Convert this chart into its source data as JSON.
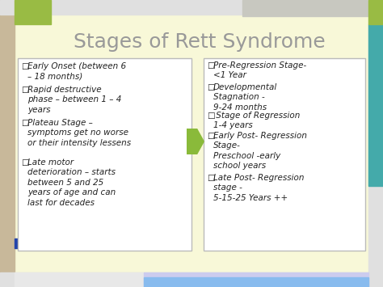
{
  "title": "Stages of Rett Syndrome",
  "title_fontsize": 18,
  "title_color": "#999999",
  "bg_color": "#f8f8d8",
  "outer_bg": "#e0e0e0",
  "left_box_items": [
    "Early Onset (between 6\n– 18 months)",
    "Rapid destructive\nphase – between 1 – 4\nyears",
    "Plateau Stage –\nsymptoms get no worse\nor their intensity lessens",
    "Late motor\ndeterioration – starts\nbetween 5 and 25\nyears of age and can\nlast for decades"
  ],
  "right_box_items": [
    "Pre-Regression Stage-\n<1 Year",
    "Developmental\nStagnation -\n9-24 months",
    " Stage of Regression\n1-4 years",
    "Early Post- Regression\nStage-\nPreschool -early\nschool years",
    "Late Post- Regression\nstage -\n5-15-25 Years ++"
  ],
  "box_bg": "#ffffff",
  "box_border": "#bbbbbb",
  "text_color": "#222222",
  "arrow_color": "#8aba3a",
  "bullet": "□",
  "col_green": "#99bb44",
  "col_tan": "#c8b89a",
  "col_blue_dark": "#2244aa",
  "col_teal": "#44aaaa",
  "col_gray_blue": "#aabbcc",
  "col_lavender": "#ccccee",
  "col_sky": "#88bbee",
  "text_fontsize": 7.5
}
